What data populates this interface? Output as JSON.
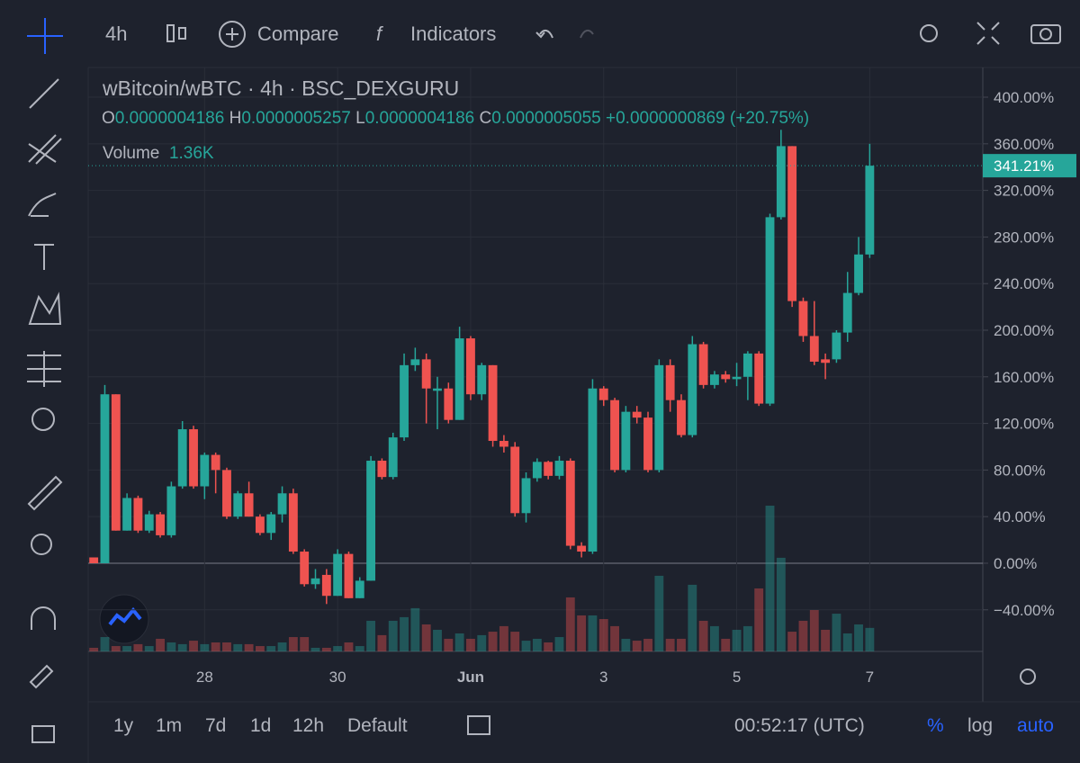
{
  "toolbar": {
    "interval": "4h",
    "compare": "Compare",
    "indicators": "Indicators"
  },
  "legend": {
    "symbol": "wBitcoin/wBTC",
    "interval": "4h",
    "exchange": "BSC_DEXGURU",
    "open_label": "O",
    "open": "0.0000004186",
    "high_label": "H",
    "high": "0.0000005257",
    "low_label": "L",
    "low": "0.0000004186",
    "close_label": "C",
    "close": "0.0000005055",
    "change": "+0.0000000869",
    "change_pct": "(+20.75%)",
    "volume_title": "Volume",
    "volume": "1.36K"
  },
  "chart_data": {
    "type": "candlestick",
    "x": [
      0,
      1,
      2,
      3,
      4,
      5,
      6,
      7,
      8,
      9,
      10,
      11,
      12,
      13,
      14,
      15,
      16,
      17,
      18,
      19,
      20,
      21,
      22,
      23,
      24,
      25,
      26,
      27,
      28,
      29,
      30,
      31,
      32,
      33,
      34,
      35,
      36,
      37,
      38,
      39,
      40,
      41,
      42,
      43,
      44,
      45,
      46,
      47,
      48,
      49,
      50,
      51,
      52,
      53,
      54,
      55,
      56,
      57,
      58,
      59,
      60,
      61,
      62,
      63,
      64,
      65,
      66,
      67,
      68,
      69,
      70
    ],
    "open": [
      5,
      0,
      145,
      28,
      56,
      28,
      42,
      24,
      66,
      115,
      66,
      93,
      80,
      40,
      60,
      40,
      26,
      42,
      60,
      10,
      -18,
      -10,
      -28,
      8,
      -30,
      -15,
      88,
      74,
      108,
      170,
      175,
      148,
      150,
      123,
      193,
      145,
      170,
      105,
      100,
      43,
      73,
      87,
      75,
      88,
      15,
      10,
      150,
      140,
      80,
      130,
      125,
      80,
      170,
      140,
      110,
      188,
      153,
      162,
      158,
      160,
      180,
      137,
      297,
      358,
      225,
      195,
      175,
      175,
      198,
      232,
      265
    ],
    "high": [
      5,
      153,
      145,
      60,
      58,
      45,
      44,
      70,
      122,
      118,
      95,
      95,
      82,
      62,
      70,
      42,
      44,
      66,
      64,
      12,
      -5,
      -5,
      12,
      10,
      -12,
      92,
      90,
      112,
      180,
      185,
      180,
      160,
      155,
      203,
      195,
      172,
      170,
      110,
      104,
      78,
      90,
      88,
      92,
      90,
      18,
      158,
      152,
      142,
      135,
      135,
      130,
      175,
      175,
      145,
      195,
      190,
      165,
      165,
      172,
      182,
      182,
      300,
      372,
      358,
      228,
      225,
      180,
      200,
      250,
      280,
      360
    ],
    "low": [
      0,
      0,
      28,
      28,
      26,
      26,
      22,
      22,
      64,
      64,
      55,
      60,
      38,
      38,
      40,
      24,
      20,
      35,
      8,
      -20,
      -22,
      -35,
      -28,
      -30,
      -30,
      -15,
      72,
      72,
      105,
      165,
      120,
      115,
      120,
      123,
      140,
      140,
      100,
      95,
      40,
      35,
      70,
      72,
      72,
      12,
      5,
      8,
      135,
      78,
      78,
      120,
      78,
      78,
      130,
      108,
      108,
      150,
      150,
      155,
      152,
      140,
      135,
      135,
      295,
      220,
      190,
      170,
      158,
      172,
      190,
      230,
      262
    ],
    "close": [
      0,
      145,
      28,
      56,
      28,
      42,
      24,
      66,
      115,
      66,
      93,
      80,
      40,
      60,
      40,
      26,
      42,
      60,
      10,
      -18,
      -13,
      -28,
      8,
      -30,
      -15,
      88,
      74,
      108,
      170,
      175,
      150,
      150,
      123,
      193,
      145,
      170,
      105,
      100,
      43,
      73,
      87,
      75,
      88,
      15,
      10,
      150,
      140,
      80,
      130,
      125,
      80,
      170,
      140,
      110,
      188,
      153,
      162,
      158,
      160,
      180,
      137,
      297,
      358,
      225,
      195,
      173,
      172,
      198,
      232,
      265,
      341.21
    ],
    "volume": [
      0.21,
      0.83,
      0.31,
      0.31,
      0.42,
      0.31,
      0.73,
      0.52,
      0.42,
      0.62,
      0.42,
      0.52,
      0.52,
      0.42,
      0.42,
      0.31,
      0.31,
      0.52,
      0.83,
      0.83,
      0.21,
      0.21,
      0.31,
      0.52,
      0.31,
      1.77,
      0.94,
      1.77,
      1.98,
      2.5,
      1.56,
      1.25,
      0.73,
      1.04,
      0.73,
      0.94,
      1.14,
      1.46,
      1.14,
      0.62,
      0.73,
      0.52,
      0.83,
      3.12,
      2.08,
      2.08,
      1.87,
      1.46,
      0.73,
      0.62,
      0.73,
      4.37,
      0.73,
      0.73,
      3.85,
      1.77,
      1.46,
      0.73,
      1.25,
      1.46,
      3.64,
      8.42,
      5.41,
      1.14,
      1.77,
      2.39,
      1.25,
      2.18,
      1.04,
      1.56,
      1.36
    ],
    "last_label": "341.21%",
    "up_color": "#26a69a",
    "down_color": "#ef5350",
    "xlim": [
      -0.5,
      80.2
    ],
    "xticks": [
      {
        "value": 10,
        "label": "28"
      },
      {
        "value": 22,
        "label": "30"
      },
      {
        "value": 34,
        "label": "Jun"
      },
      {
        "value": 46,
        "label": "3"
      },
      {
        "value": 58,
        "label": "5"
      },
      {
        "value": 70,
        "label": "7"
      }
    ],
    "ylim": [
      -75.7,
      425.5
    ],
    "yticks": [
      {
        "value": 400,
        "label": "400.00%"
      },
      {
        "value": 360,
        "label": "360.00%"
      },
      {
        "value": 320,
        "label": "320.00%"
      },
      {
        "value": 280,
        "label": "280.00%"
      },
      {
        "value": 240,
        "label": "240.00%"
      },
      {
        "value": 200,
        "label": "200.00%"
      },
      {
        "value": 160,
        "label": "160.00%"
      },
      {
        "value": 120,
        "label": "120.00%"
      },
      {
        "value": 80,
        "label": "80.00%"
      },
      {
        "value": 40,
        "label": "40.00%"
      },
      {
        "value": 0,
        "label": "0.00%"
      },
      {
        "value": -40,
        "label": "−40.00%"
      }
    ],
    "grid": true
  },
  "bottom_bar": {
    "ranges": [
      "1y",
      "1m",
      "7d",
      "1d",
      "12h"
    ],
    "default": "Default",
    "clock": "00:52:17 (UTC)",
    "percent": "%",
    "log": "log",
    "auto": "auto"
  }
}
